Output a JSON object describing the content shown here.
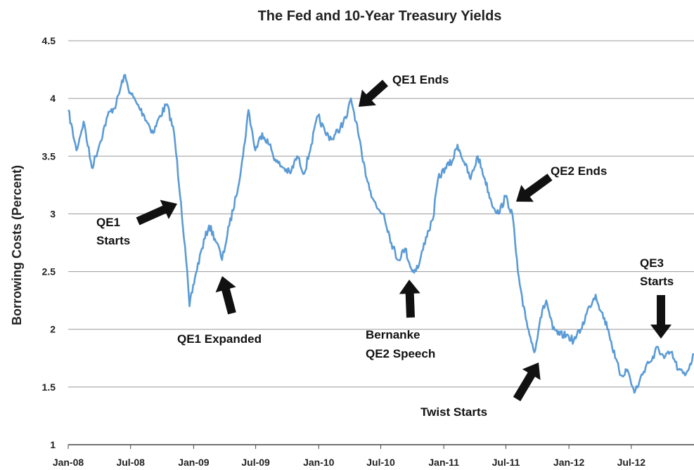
{
  "chart_data": {
    "type": "line",
    "title": "The Fed and 10-Year Treasury Yields",
    "xlabel": "",
    "ylabel": "Borrowing Costs (Percent)",
    "ylim": [
      1,
      4.5
    ],
    "yticks": [
      "1",
      "1.5",
      "2",
      "2.5",
      "3",
      "3.5",
      "4",
      "4.5"
    ],
    "xticks": [
      "Jan-08",
      "Jul-08",
      "Jan-09",
      "Jul-09",
      "Jan-10",
      "Jul-10",
      "Jan-11",
      "Jul-11",
      "Jan-12",
      "Jul-12"
    ],
    "grid": true,
    "line_color": "#5b9bd5",
    "series": [
      {
        "x": [
          "2008-01-01",
          "2008-01-25",
          "2008-02-15",
          "2008-03-10",
          "2008-04-01",
          "2008-04-25",
          "2008-05-20",
          "2008-06-12",
          "2008-06-30",
          "2008-07-20",
          "2008-08-10",
          "2008-09-05",
          "2008-09-25",
          "2008-10-15",
          "2008-11-05",
          "2008-11-25",
          "2008-12-10",
          "2008-12-20",
          "2009-01-05",
          "2009-01-25",
          "2009-02-15",
          "2009-03-10",
          "2009-03-25",
          "2009-04-15",
          "2009-05-05",
          "2009-05-25",
          "2009-06-10",
          "2009-06-30",
          "2009-07-20",
          "2009-08-10",
          "2009-08-30",
          "2009-09-20",
          "2009-10-10",
          "2009-10-30",
          "2009-11-20",
          "2009-12-10",
          "2009-12-30",
          "2010-01-20",
          "2010-02-10",
          "2010-03-05",
          "2010-03-25",
          "2010-04-05",
          "2010-04-20",
          "2010-05-10",
          "2010-06-01",
          "2010-06-20",
          "2010-07-10",
          "2010-08-01",
          "2010-08-20",
          "2010-09-10",
          "2010-10-01",
          "2010-10-20",
          "2010-11-10",
          "2010-11-30",
          "2010-12-15",
          "2011-01-05",
          "2011-01-25",
          "2011-02-10",
          "2011-03-01",
          "2011-03-20",
          "2011-04-10",
          "2011-05-01",
          "2011-05-20",
          "2011-06-10",
          "2011-06-30",
          "2011-07-20",
          "2011-08-05",
          "2011-08-20",
          "2011-09-05",
          "2011-09-22",
          "2011-10-10",
          "2011-10-27",
          "2011-11-15",
          "2011-12-05",
          "2011-12-25",
          "2012-01-15",
          "2012-02-05",
          "2012-03-01",
          "2012-03-19",
          "2012-04-05",
          "2012-04-25",
          "2012-05-15",
          "2012-06-01",
          "2012-06-20",
          "2012-07-10",
          "2012-07-25",
          "2012-08-15",
          "2012-09-05",
          "2012-09-14",
          "2012-10-05",
          "2012-10-25",
          "2012-11-15",
          "2012-12-05",
          "2012-12-31"
        ],
        "values": [
          3.9,
          3.55,
          3.8,
          3.4,
          3.6,
          3.85,
          3.95,
          4.2,
          4.05,
          3.95,
          3.85,
          3.7,
          3.85,
          3.95,
          3.7,
          3.1,
          2.6,
          2.2,
          2.45,
          2.7,
          2.9,
          2.75,
          2.6,
          2.9,
          3.15,
          3.5,
          3.9,
          3.55,
          3.7,
          3.6,
          3.45,
          3.4,
          3.35,
          3.5,
          3.35,
          3.6,
          3.85,
          3.7,
          3.65,
          3.75,
          3.85,
          4.0,
          3.8,
          3.45,
          3.2,
          3.05,
          3.0,
          2.75,
          2.6,
          2.7,
          2.5,
          2.55,
          2.8,
          2.95,
          3.3,
          3.4,
          3.45,
          3.6,
          3.45,
          3.3,
          3.5,
          3.3,
          3.1,
          3.0,
          3.15,
          3.0,
          2.5,
          2.2,
          2.0,
          1.8,
          2.1,
          2.25,
          2.0,
          1.95,
          1.95,
          1.9,
          2.0,
          2.2,
          2.3,
          2.15,
          2.0,
          1.75,
          1.6,
          1.65,
          1.45,
          1.55,
          1.7,
          1.75,
          1.85,
          1.75,
          1.8,
          1.65,
          1.6,
          1.78
        ]
      }
    ],
    "annotations": [
      {
        "label": "QE1 Ends"
      },
      {
        "label": "QE1",
        "label2": "Starts"
      },
      {
        "label": "QE1 Expanded"
      },
      {
        "label": "Bernanke",
        "label2": "QE2 Speech"
      },
      {
        "label": "QE2 Ends"
      },
      {
        "label": "Twist Starts"
      },
      {
        "label": "QE3",
        "label2": "Starts"
      }
    ]
  }
}
